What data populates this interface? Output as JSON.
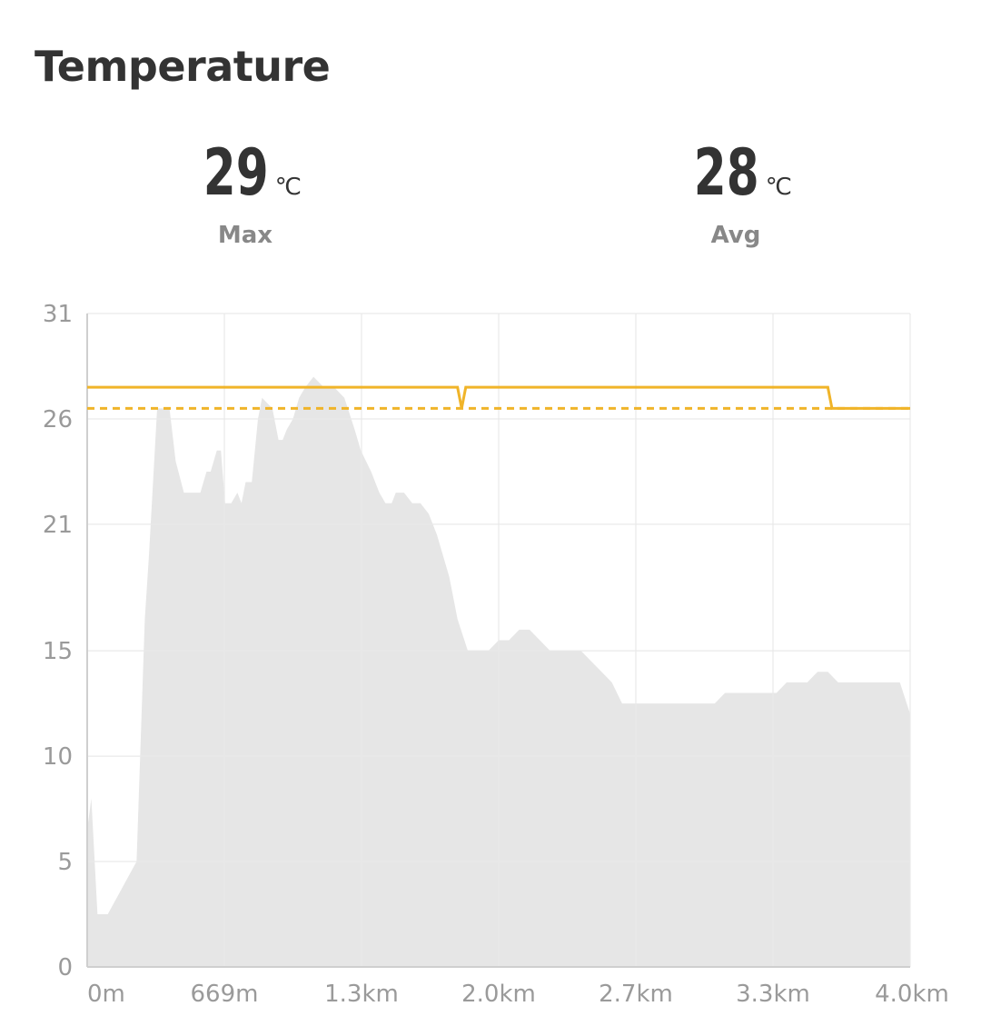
{
  "header": {
    "title": "Temperature"
  },
  "stats": {
    "max": {
      "value": "29",
      "unit": "℃",
      "label": "Max"
    },
    "avg": {
      "value": "28",
      "unit": "℃",
      "label": "Avg"
    }
  },
  "colors": {
    "area": "#e6e6e6",
    "line": "#f0b429",
    "grid": "#e8e8e8",
    "tick": "#9a9a9a"
  },
  "chart_data": {
    "type": "area",
    "title": "",
    "xlabel": "",
    "ylabel": "",
    "xlim": [
      0,
      4.0
    ],
    "ylim": [
      0,
      31
    ],
    "y_ticks": [
      0,
      5,
      10,
      15,
      21,
      26,
      31
    ],
    "x_ticks": [
      "0m",
      "669m",
      "1.3km",
      "2.0km",
      "2.7km",
      "3.3km",
      "4.0km"
    ],
    "grid": true,
    "series": [
      {
        "type": "area",
        "x": [
          0,
          0.02,
          0.05,
          0.07,
          0.1,
          0.24,
          0.28,
          0.3,
          0.34,
          0.4,
          0.43,
          0.47,
          0.5,
          0.55,
          0.58,
          0.6,
          0.63,
          0.65,
          0.67,
          0.7,
          0.73,
          0.75,
          0.77,
          0.8,
          0.83,
          0.85,
          0.9,
          0.93,
          0.95,
          0.97,
          1.0,
          1.03,
          1.06,
          1.1,
          1.15,
          1.2,
          1.25,
          1.3,
          1.33,
          1.38,
          1.42,
          1.45,
          1.48,
          1.5,
          1.54,
          1.58,
          1.62,
          1.66,
          1.7,
          1.76,
          1.8,
          1.85,
          1.9,
          1.95,
          2.0,
          2.05,
          2.1,
          2.15,
          2.2,
          2.25,
          2.3,
          2.35,
          2.4,
          2.45,
          2.5,
          2.55,
          2.6,
          2.65,
          2.7,
          2.75,
          2.8,
          2.85,
          2.9,
          2.95,
          3.0,
          3.05,
          3.1,
          3.15,
          3.2,
          3.25,
          3.3,
          3.35,
          3.4,
          3.45,
          3.5,
          3.55,
          3.6,
          3.65,
          3.7,
          3.75,
          3.8,
          3.85,
          3.9,
          3.95,
          4.0
        ],
        "values": [
          6.5,
          8.0,
          2.5,
          2.5,
          2.5,
          5.0,
          16.5,
          19.5,
          26.5,
          26.5,
          24.0,
          22.5,
          22.5,
          22.5,
          23.5,
          23.5,
          24.5,
          24.5,
          22.0,
          22.0,
          22.5,
          22.0,
          23.0,
          23.0,
          26.0,
          27.0,
          26.5,
          25.0,
          25.0,
          25.5,
          26.0,
          27.0,
          27.5,
          28.0,
          27.5,
          27.5,
          27.0,
          25.5,
          24.5,
          23.5,
          22.5,
          22.0,
          22.0,
          22.5,
          22.5,
          22.0,
          22.0,
          21.5,
          20.5,
          18.5,
          16.5,
          15.0,
          15.0,
          15.0,
          15.5,
          15.5,
          16.0,
          16.0,
          15.5,
          15.0,
          15.0,
          15.0,
          15.0,
          14.5,
          14.0,
          13.5,
          12.5,
          12.5,
          12.5,
          12.5,
          12.5,
          12.5,
          12.5,
          12.5,
          12.5,
          12.5,
          13.0,
          13.0,
          13.0,
          13.0,
          13.0,
          13.0,
          13.5,
          13.5,
          13.5,
          14.0,
          14.0,
          13.5,
          13.5,
          13.5,
          13.5,
          13.5,
          13.5,
          13.5,
          12.0
        ]
      },
      {
        "type": "line",
        "x": [
          0,
          1.8,
          1.82,
          1.84,
          3.6,
          3.62,
          4.0
        ],
        "values": [
          27.5,
          27.5,
          26.5,
          27.5,
          27.5,
          26.5,
          26.5
        ]
      },
      {
        "type": "line",
        "style": "dashed",
        "x": [
          0,
          4.0
        ],
        "values": [
          26.5,
          26.5
        ]
      }
    ]
  }
}
